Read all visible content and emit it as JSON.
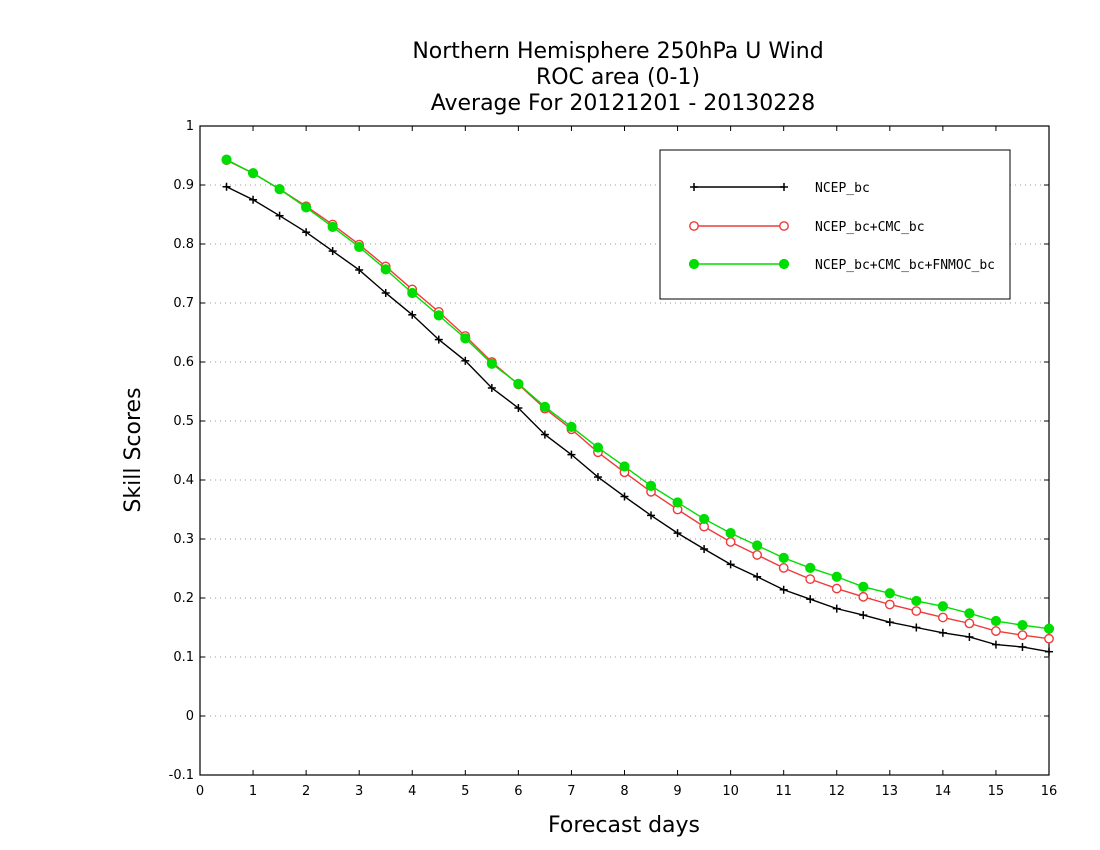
{
  "chart_data": {
    "type": "line",
    "title": [
      "Northern Hemisphere 250hPa U Wind",
      "ROC area (0-1)",
      "Average For 20121201 - 20130228"
    ],
    "xlabel": "Forecast days",
    "ylabel": "Skill Scores",
    "xlim": [
      0,
      16
    ],
    "ylim": [
      -0.1,
      1
    ],
    "xticks": [
      0,
      1,
      2,
      3,
      4,
      5,
      6,
      7,
      8,
      9,
      10,
      11,
      12,
      13,
      14,
      15,
      16
    ],
    "yticks": [
      -0.1,
      0,
      0.1,
      0.2,
      0.3,
      0.4,
      0.5,
      0.6,
      0.7,
      0.8,
      0.9,
      1
    ],
    "ytick_labels": [
      "-0.1",
      "0",
      "0.1",
      "0.2",
      "0.3",
      "0.4",
      "0.5",
      "0.6",
      "0.7",
      "0.8",
      "0.9",
      "1"
    ],
    "grid": true,
    "legend_position": "top-right",
    "x": [
      0.5,
      1,
      1.5,
      2,
      2.5,
      3,
      3.5,
      4,
      4.5,
      5,
      5.5,
      6,
      6.5,
      7,
      7.5,
      8,
      8.5,
      9,
      9.5,
      10,
      10.5,
      11,
      11.5,
      12,
      12.5,
      13,
      13.5,
      14,
      14.5,
      15,
      15.5,
      16
    ],
    "series": [
      {
        "name": "NCEP_bc",
        "color": "#000000",
        "marker": "plus",
        "values": [
          0.897,
          0.875,
          0.848,
          0.82,
          0.788,
          0.756,
          0.717,
          0.68,
          0.638,
          0.602,
          0.556,
          0.522,
          0.477,
          0.443,
          0.405,
          0.372,
          0.34,
          0.31,
          0.283,
          0.257,
          0.236,
          0.214,
          0.198,
          0.182,
          0.171,
          0.159,
          0.15,
          0.141,
          0.134,
          0.121,
          0.117,
          0.109
        ]
      },
      {
        "name": "NCEP_bc+CMC_bc",
        "color": "#ee3b3b",
        "marker": "open-circle",
        "values": [
          0.942,
          0.92,
          0.893,
          0.864,
          0.833,
          0.799,
          0.762,
          0.723,
          0.685,
          0.644,
          0.6,
          0.562,
          0.521,
          0.486,
          0.447,
          0.413,
          0.38,
          0.35,
          0.321,
          0.295,
          0.273,
          0.251,
          0.232,
          0.216,
          0.202,
          0.189,
          0.178,
          0.167,
          0.157,
          0.144,
          0.137,
          0.131
        ]
      },
      {
        "name": "NCEP_bc+CMC_bc+FNMOC_bc",
        "color": "#00dd00",
        "marker": "filled-circle",
        "values": [
          0.943,
          0.92,
          0.893,
          0.862,
          0.829,
          0.795,
          0.757,
          0.717,
          0.679,
          0.64,
          0.597,
          0.563,
          0.524,
          0.49,
          0.455,
          0.423,
          0.39,
          0.362,
          0.334,
          0.31,
          0.289,
          0.268,
          0.251,
          0.236,
          0.219,
          0.208,
          0.195,
          0.186,
          0.174,
          0.161,
          0.154,
          0.148
        ]
      }
    ]
  }
}
